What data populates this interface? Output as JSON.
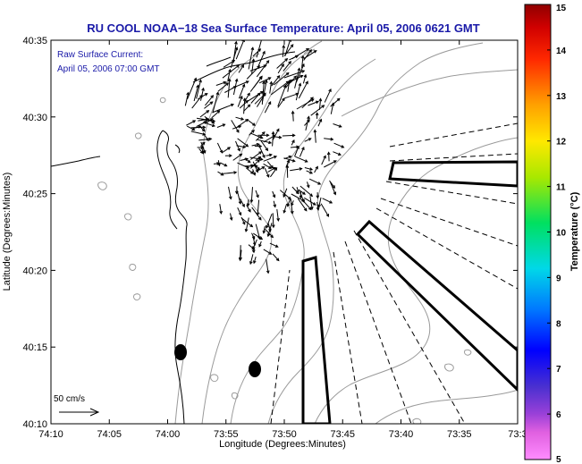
{
  "header": {
    "title": "RU COOL  NOAA−18  Sea Surface Temperature:  April 05, 2006 0621 GMT"
  },
  "annotation": {
    "line1": "Raw Surface Current:",
    "line2": "April 05, 2006 07:00 GMT"
  },
  "scale_bar": {
    "label": "50 cm/s"
  },
  "axes": {
    "xlabel": "Longitude (Degrees:Minutes)",
    "ylabel": "Latitude (Degrees:Minutes)",
    "x_ticks": [
      "74:10",
      "74:05",
      "74:00",
      "73:55",
      "73:50",
      "73:45",
      "73:40",
      "73:35",
      "73:3"
    ],
    "y_ticks": [
      "40:35",
      "40:30",
      "40:25",
      "40:20",
      "40:15",
      "40:10"
    ]
  },
  "colorbar": {
    "label": "Temperature (°C)",
    "ticks": [
      "15",
      "14",
      "13",
      "12",
      "11",
      "10",
      "9",
      "8",
      "7",
      "6",
      "5"
    ],
    "min": 5,
    "max": 15
  },
  "colors": {
    "title": "#1a1aa8",
    "annotation": "#1a1aa8"
  }
}
